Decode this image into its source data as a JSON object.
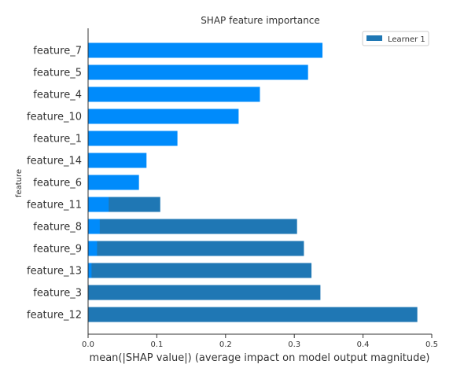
{
  "chart_data": {
    "type": "bar",
    "orientation": "horizontal",
    "title": "SHAP feature importance",
    "xlabel": "mean(|SHAP value|) (average impact on model output magnitude)",
    "ylabel": "feature",
    "xlim": [
      0,
      0.5
    ],
    "xticks": [
      "0.0",
      "0.1",
      "0.2",
      "0.3",
      "0.4",
      "0.5"
    ],
    "xtick_values": [
      0,
      0.1,
      0.2,
      0.3,
      0.4,
      0.5
    ],
    "grid": false,
    "legend_position": "top-right",
    "categories": [
      "feature_7",
      "feature_5",
      "feature_4",
      "feature_10",
      "feature_1",
      "feature_14",
      "feature_6",
      "feature_11",
      "feature_8",
      "feature_9",
      "feature_13",
      "feature_3",
      "feature_12"
    ],
    "series": [
      {
        "name": "Learner 1",
        "color": "#1f77b4",
        "values": [
          0,
          0,
          0,
          0,
          0,
          0,
          0,
          0.105,
          0.304,
          0.314,
          0.325,
          0.338,
          0.479
        ]
      },
      {
        "color": "#008bfb",
        "values": [
          0.341,
          0.32,
          0.25,
          0.219,
          0.13,
          0.085,
          0.074,
          0.03,
          0.017,
          0.013,
          0.005,
          0,
          0
        ]
      }
    ]
  }
}
